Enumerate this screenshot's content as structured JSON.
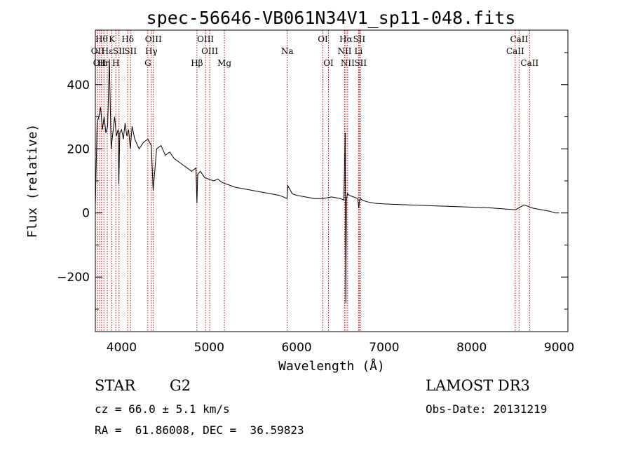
{
  "chart_data": {
    "type": "line",
    "title": "spec-56646-VB061N34V1_sp11-048.fits",
    "xlabel": "Wavelength (Å)",
    "ylabel": "Flux (relative)",
    "xlim": [
      3700,
      9100
    ],
    "ylim": [
      -370,
      570
    ],
    "xticks": [
      4000,
      5000,
      6000,
      7000,
      8000,
      9000
    ],
    "yticks": [
      -200,
      0,
      200,
      400
    ],
    "line_color": "#000000",
    "marker_color": "#cc0000",
    "series": [
      {
        "x": [
          3700,
          3720,
          3740,
          3760,
          3780,
          3800,
          3820,
          3840,
          3860,
          3880,
          3900,
          3920,
          3940,
          3960,
          3968,
          3980,
          4000,
          4020,
          4040,
          4060,
          4080,
          4100,
          4120,
          4150,
          4200,
          4250,
          4300,
          4340,
          4360,
          4400,
          4450,
          4500,
          4550,
          4600,
          4650,
          4700,
          4750,
          4800,
          4850,
          4861,
          4870,
          4900,
          4950,
          5000,
          5050,
          5100,
          5150,
          5200,
          5300,
          5400,
          5500,
          5600,
          5700,
          5800,
          5850,
          5890,
          5900,
          5950,
          6000,
          6100,
          6200,
          6300,
          6400,
          6500,
          6540,
          6555,
          6562,
          6570,
          6580,
          6600,
          6650,
          6700,
          6710,
          6720,
          6730,
          6750,
          6800,
          6900,
          7000,
          7200,
          7400,
          7600,
          7800,
          8000,
          8200,
          8400,
          8500,
          8600,
          8700,
          8800,
          8900,
          8950,
          9000
        ],
        "y": [
          20,
          280,
          300,
          330,
          260,
          300,
          250,
          270,
          480,
          200,
          250,
          300,
          240,
          260,
          90,
          250,
          260,
          230,
          280,
          240,
          260,
          200,
          270,
          230,
          200,
          220,
          230,
          210,
          70,
          200,
          210,
          180,
          190,
          170,
          160,
          150,
          140,
          130,
          140,
          30,
          120,
          130,
          110,
          105,
          100,
          105,
          95,
          90,
          80,
          75,
          70,
          65,
          60,
          55,
          50,
          45,
          85,
          60,
          55,
          50,
          45,
          45,
          50,
          45,
          40,
          250,
          -280,
          40,
          60,
          55,
          50,
          45,
          15,
          40,
          45,
          40,
          35,
          30,
          28,
          26,
          24,
          22,
          20,
          18,
          16,
          12,
          10,
          25,
          15,
          10,
          5,
          0,
          0
        ]
      }
    ],
    "lines": [
      {
        "wl": 3727,
        "label": "OII",
        "row": 1
      },
      {
        "wl": 3750,
        "label": "OII",
        "row": 2
      },
      {
        "wl": 3771,
        "label": "Hθ",
        "row": 0
      },
      {
        "wl": 3798,
        "label": "Hη",
        "row": 2
      },
      {
        "wl": 3836,
        "label": "Hε",
        "row": 1
      },
      {
        "wl": 3889,
        "label": "K",
        "row": 0
      },
      {
        "wl": 3934,
        "label": "H",
        "row": 2
      },
      {
        "wl": 3970,
        "label": "SII",
        "row": 1
      },
      {
        "wl": 4070,
        "label": "Hδ",
        "row": 0
      },
      {
        "wl": 4102,
        "label": "SII",
        "row": 1
      },
      {
        "wl": 4300,
        "label": "G",
        "row": 2
      },
      {
        "wl": 4340,
        "label": "Hγ",
        "row": 1
      },
      {
        "wl": 4363,
        "label": "OIII",
        "row": 0
      },
      {
        "wl": 4861,
        "label": "Hβ",
        "row": 2
      },
      {
        "wl": 4959,
        "label": "OIII",
        "row": 0
      },
      {
        "wl": 5007,
        "label": "OIII",
        "row": 1
      },
      {
        "wl": 5175,
        "label": "Mg",
        "row": 2
      },
      {
        "wl": 5893,
        "label": "Na",
        "row": 1
      },
      {
        "wl": 6300,
        "label": "OI",
        "row": 0
      },
      {
        "wl": 6364,
        "label": "OI",
        "row": 2
      },
      {
        "wl": 6548,
        "label": "NII",
        "row": 1
      },
      {
        "wl": 6563,
        "label": "Hα",
        "row": 0
      },
      {
        "wl": 6583,
        "label": "NII",
        "row": 2
      },
      {
        "wl": 6708,
        "label": "Li",
        "row": 1
      },
      {
        "wl": 6716,
        "label": "SII",
        "row": 0
      },
      {
        "wl": 6731,
        "label": "SII",
        "row": 2
      },
      {
        "wl": 8498,
        "label": "CaII",
        "row": 1
      },
      {
        "wl": 8542,
        "label": "CaII",
        "row": 0
      },
      {
        "wl": 8662,
        "label": "CaII",
        "row": 2
      }
    ]
  },
  "info": {
    "object_class": "STAR",
    "subclass": "G2",
    "redshift": "cz = 66.0 ± 5.1 km/s",
    "coords": "RA =  61.86008, DEC =  36.59823",
    "survey": "LAMOST DR3",
    "obs_date": "Obs-Date: 20131219"
  }
}
